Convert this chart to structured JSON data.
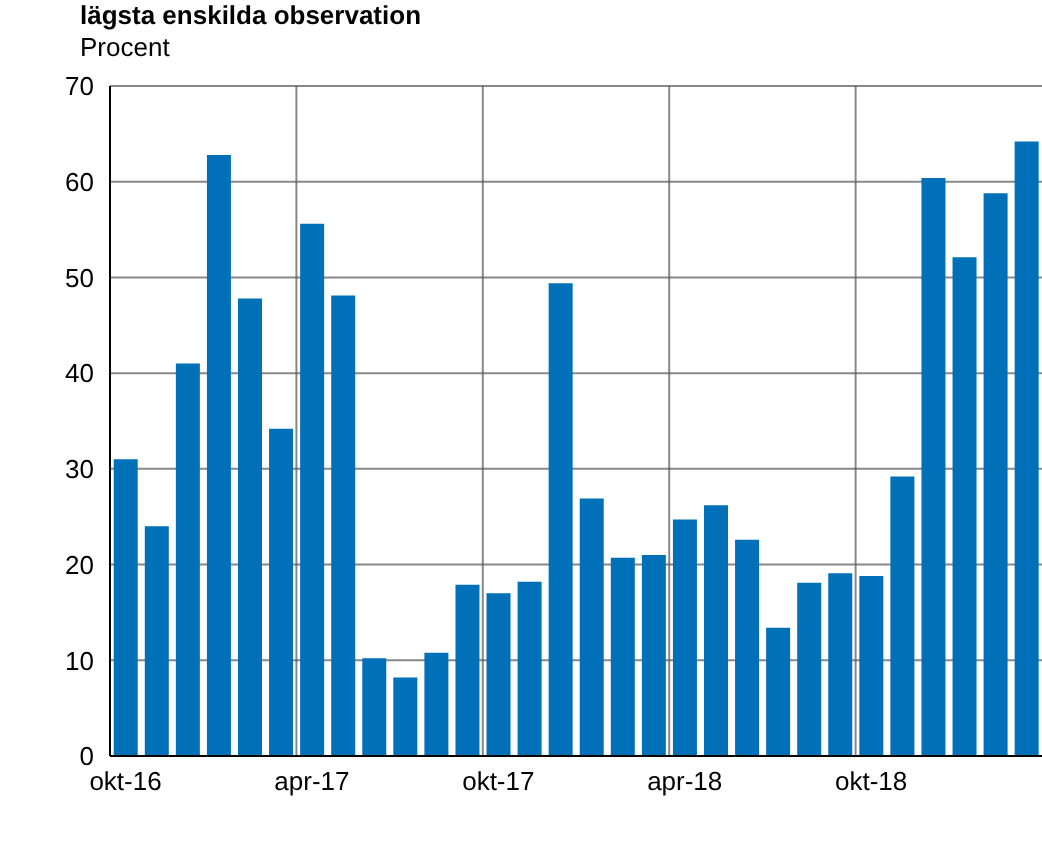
{
  "chart_data": {
    "type": "bar",
    "title": "lägsta enskilda observation",
    "ylabel": "Procent",
    "categories": [
      "okt-16",
      null,
      null,
      null,
      null,
      null,
      "apr-17",
      null,
      null,
      null,
      null,
      null,
      "okt-17",
      null,
      null,
      null,
      null,
      null,
      "apr-18",
      null,
      null,
      null,
      null,
      null,
      "okt-18",
      null,
      null,
      null,
      null,
      null
    ],
    "values": [
      31,
      24,
      41,
      62.8,
      47.8,
      34.2,
      55.6,
      48.1,
      10.2,
      8.2,
      10.8,
      17.9,
      17,
      18.2,
      49.4,
      26.9,
      20.7,
      21,
      24.7,
      26.2,
      22.6,
      13.4,
      18.1,
      19.1,
      18.8,
      29.2,
      60.4,
      52.1,
      58.8,
      64.2
    ],
    "color": "#0070b8",
    "ylim": [
      0,
      70
    ],
    "yticks": [
      0,
      10,
      20,
      30,
      40,
      50,
      60,
      70
    ],
    "grid": true
  }
}
